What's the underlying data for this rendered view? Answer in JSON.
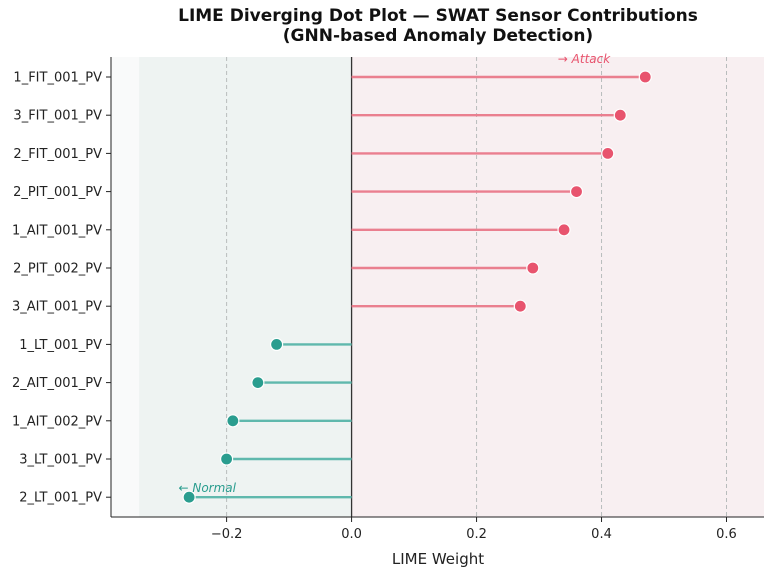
{
  "chart_data": {
    "type": "scatter",
    "subtype": "diverging-lollipop",
    "title": "LIME Diverging Dot Plot — SWAT Sensor Contributions",
    "subtitle": "(GNN-based Anomaly Detection)",
    "xlabel": "LIME Weight",
    "ylabel": "",
    "xlim": [
      -0.385,
      0.66
    ],
    "xticks": [
      -0.2,
      0.0,
      0.2,
      0.4,
      0.6
    ],
    "xtick_labels": [
      "−0.2",
      "0.0",
      "0.2",
      "0.4",
      "0.6"
    ],
    "grid": "vertical dashed",
    "categories": [
      "1_FIT_001_PV",
      "3_FIT_001_PV",
      "2_FIT_001_PV",
      "2_PIT_001_PV",
      "1_AIT_001_PV",
      "2_PIT_002_PV",
      "3_AIT_001_PV",
      "1_LT_001_PV",
      "2_AIT_001_PV",
      "1_AIT_002_PV",
      "3_LT_001_PV",
      "2_LT_001_PV"
    ],
    "values": [
      0.47,
      0.43,
      0.41,
      0.36,
      0.34,
      0.29,
      0.27,
      -0.12,
      -0.15,
      -0.19,
      -0.2,
      -0.26
    ],
    "shaded_regions": [
      {
        "from": -0.34,
        "to": 0.0,
        "color": "#eef3f2"
      },
      {
        "from": 0.0,
        "to": 0.66,
        "color": "#f8eff1"
      }
    ],
    "annotations": [
      {
        "text": "→ Attack",
        "color": "#e8546e"
      },
      {
        "text": "← Normal",
        "color": "#2a9d8f"
      }
    ],
    "colors": {
      "positive": "#e8546e",
      "positive_line": "#ea7f8f",
      "negative": "#2a9d8f",
      "negative_line": "#5fb8ad"
    }
  }
}
